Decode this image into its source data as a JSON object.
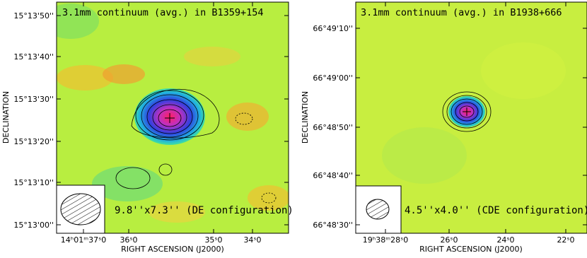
{
  "panels": [
    {
      "title": "3.1mm continuum (avg.) in B1359+154",
      "beam": "9.8''x7.3'' (DE configuration)",
      "y_axis_label": "DECLINATION",
      "x_axis_label": "RIGHT ASCENSION (J2000)",
      "yticks": [
        "15°13'50''",
        "15°13'40''",
        "15°13'30''",
        "15°13'20''",
        "15°13'10''",
        "15°13'00''"
      ],
      "xticks": [
        "14ʰ01ᵐ37ˢ0",
        "36ˢ0",
        "35ˢ0",
        "34ˢ0"
      ]
    },
    {
      "title": "3.1mm continuum (avg.) in B1938+666",
      "beam": "4.5''x4.0'' (CDE configuration)",
      "y_axis_label": "DECLINATION",
      "x_axis_label": "RIGHT ASCENSION (J2000)",
      "yticks": [
        "66°49'10''",
        "66°49'00''",
        "66°48'50''",
        "66°48'40''",
        "66°48'30''"
      ],
      "xticks": [
        "19ʰ38ᵐ28ˢ0",
        "26ˢ0",
        "24ˢ0",
        "22ˢ0"
      ]
    }
  ]
}
